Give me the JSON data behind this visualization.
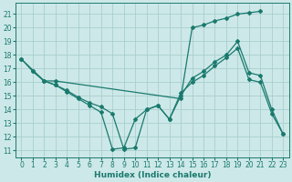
{
  "xlabel": "Humidex (Indice chaleur)",
  "bg_color": "#cde8e8",
  "line_color": "#1a7a6e",
  "grid_color": "#a8cece",
  "xlim": [
    -0.5,
    23.5
  ],
  "ylim": [
    10.5,
    21.8
  ],
  "yticks": [
    11,
    12,
    13,
    14,
    15,
    16,
    17,
    18,
    19,
    20,
    21
  ],
  "xticks": [
    0,
    1,
    2,
    3,
    4,
    5,
    6,
    7,
    8,
    9,
    10,
    11,
    12,
    13,
    14,
    15,
    16,
    17,
    18,
    19,
    20,
    21,
    22,
    23
  ],
  "series": [
    {
      "x": [
        1,
        2,
        3,
        14,
        15,
        16,
        17,
        18,
        19,
        20,
        21
      ],
      "y": [
        16.8,
        16.1,
        16.1,
        14.8,
        20.0,
        20.2,
        20.5,
        20.7,
        21.0,
        21.1,
        21.2
      ]
    },
    {
      "x": [
        0,
        1,
        2,
        3,
        4,
        5,
        6,
        7,
        8,
        9,
        10,
        11,
        12,
        13,
        14,
        15,
        16,
        17,
        18,
        19,
        20,
        21,
        22,
        23
      ],
      "y": [
        17.7,
        16.8,
        16.1,
        15.8,
        15.4,
        14.9,
        14.5,
        14.2,
        13.7,
        11.1,
        11.2,
        14.0,
        14.3,
        13.3,
        15.0,
        16.3,
        16.8,
        17.5,
        18.0,
        19.0,
        16.7,
        16.5,
        14.0,
        12.2
      ]
    },
    {
      "x": [
        0,
        2,
        3,
        4,
        5,
        6,
        7,
        8,
        9,
        10,
        11,
        12,
        13,
        14,
        15,
        16,
        17,
        18,
        19,
        20,
        21,
        22,
        23
      ],
      "y": [
        17.7,
        16.1,
        15.8,
        15.3,
        14.8,
        14.3,
        13.8,
        11.1,
        11.2,
        13.3,
        14.0,
        14.3,
        13.3,
        15.2,
        16.0,
        16.5,
        17.2,
        17.8,
        18.5,
        16.2,
        16.0,
        13.7,
        12.2
      ]
    }
  ],
  "marker": "D",
  "markersize": 2.0,
  "linewidth": 0.9,
  "xlabel_fontsize": 6.5,
  "tick_fontsize": 5.5
}
